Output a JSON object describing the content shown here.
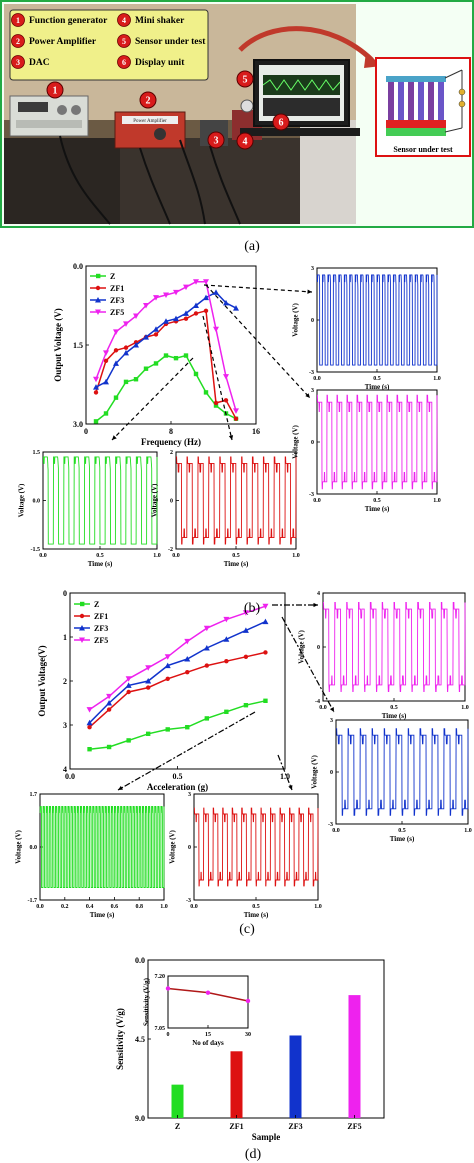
{
  "panel_a": {
    "legend_items": [
      {
        "num": "1",
        "label": "Function generator"
      },
      {
        "num": "2",
        "label": "Power Amplifier"
      },
      {
        "num": "3",
        "label": "DAC"
      },
      {
        "num": "4",
        "label": "Mini shaker"
      },
      {
        "num": "5",
        "label": "Sensor under test"
      },
      {
        "num": "6",
        "label": "Display unit"
      }
    ],
    "photo_markers": [
      "1",
      "2",
      "3",
      "4",
      "5",
      "6"
    ],
    "inset_caption": "Sensor under test",
    "device_label": "Power Amplifier"
  },
  "captions": {
    "a": "(a)",
    "b": "(b)",
    "c": "(c)",
    "d": "(d)"
  },
  "colors": {
    "Z": "#22dd22",
    "ZF1": "#dd1111",
    "ZF3": "#1133cc",
    "ZF5": "#ee22ee"
  },
  "chart_data": [
    {
      "id": "b-main",
      "type": "line",
      "xlabel": "Frequency (Hz)",
      "ylabel": "Output Voltage (V)",
      "xlim": [
        0,
        17
      ],
      "ylim": [
        0,
        3.0
      ],
      "xticks": [
        "0",
        "8",
        "16"
      ],
      "yticks": [
        "0.0",
        "1.5",
        "3.0"
      ],
      "legend": "top-left",
      "series": [
        {
          "name": "Z",
          "points": [
            [
              1,
              0.05
            ],
            [
              2,
              0.2
            ],
            [
              3,
              0.5
            ],
            [
              4,
              0.8
            ],
            [
              5,
              0.85
            ],
            [
              6,
              1.05
            ],
            [
              7,
              1.15
            ],
            [
              8,
              1.3
            ],
            [
              9,
              1.25
            ],
            [
              10,
              1.3
            ],
            [
              11,
              0.95
            ],
            [
              12,
              0.6
            ],
            [
              13,
              0.35
            ],
            [
              14,
              0.2
            ],
            [
              15,
              0.1
            ]
          ]
        },
        {
          "name": "ZF1",
          "points": [
            [
              1,
              0.6
            ],
            [
              2,
              1.2
            ],
            [
              3,
              1.4
            ],
            [
              4,
              1.45
            ],
            [
              5,
              1.55
            ],
            [
              6,
              1.65
            ],
            [
              7,
              1.7
            ],
            [
              8,
              1.9
            ],
            [
              9,
              1.95
            ],
            [
              10,
              2.0
            ],
            [
              11,
              2.1
            ],
            [
              12,
              2.15
            ],
            [
              13,
              0.4
            ],
            [
              14,
              0.45
            ],
            [
              15,
              0.1
            ]
          ]
        },
        {
          "name": "ZF3",
          "points": [
            [
              1,
              0.7
            ],
            [
              2,
              0.8
            ],
            [
              3,
              1.15
            ],
            [
              4,
              1.35
            ],
            [
              5,
              1.5
            ],
            [
              6,
              1.65
            ],
            [
              7,
              1.8
            ],
            [
              8,
              1.95
            ],
            [
              9,
              2.0
            ],
            [
              10,
              2.1
            ],
            [
              11,
              2.25
            ],
            [
              12,
              2.4
            ],
            [
              13,
              2.5
            ],
            [
              14,
              2.3
            ],
            [
              15,
              2.2
            ]
          ]
        },
        {
          "name": "ZF5",
          "points": [
            [
              1,
              0.85
            ],
            [
              2,
              1.35
            ],
            [
              3,
              1.75
            ],
            [
              4,
              1.9
            ],
            [
              5,
              2.05
            ],
            [
              6,
              2.25
            ],
            [
              7,
              2.4
            ],
            [
              8,
              2.45
            ],
            [
              9,
              2.5
            ],
            [
              10,
              2.6
            ],
            [
              11,
              2.7
            ],
            [
              12,
              2.7
            ],
            [
              13,
              1.8
            ],
            [
              14,
              0.9
            ],
            [
              15,
              0.25
            ]
          ]
        }
      ]
    },
    {
      "id": "b-green",
      "type": "line",
      "xlabel": "Time (s)",
      "ylabel": "Voltage (V)",
      "xlim": [
        0,
        1
      ],
      "ylim": [
        -1.5,
        1.5
      ],
      "xticks": [
        "0.0",
        "0.5",
        "1.0"
      ],
      "yticks": [
        "1.5",
        "0.0",
        "-1.5"
      ],
      "series": [
        {
          "name": "Z",
          "cycles": 11,
          "amplitude": 1.35
        }
      ]
    },
    {
      "id": "b-red",
      "type": "line",
      "xlabel": "Time (s)",
      "ylabel": "Voltage (V)",
      "xlim": [
        0,
        1
      ],
      "ylim": [
        -2,
        2
      ],
      "xticks": [
        "0.0",
        "0.5",
        "1.0"
      ],
      "yticks": [
        "2",
        "0",
        "-2"
      ],
      "series": [
        {
          "name": "ZF1",
          "cycles": 11,
          "amplitude": 1.8
        }
      ]
    },
    {
      "id": "b-blue",
      "type": "line",
      "xlabel": "Time (s)",
      "ylabel": "Voltage (V)",
      "xlim": [
        0,
        1
      ],
      "ylim": [
        -3,
        3
      ],
      "xticks": [
        "0.0",
        "0.5",
        "1.0"
      ],
      "yticks": [
        "3",
        "0",
        "-3"
      ],
      "series": [
        {
          "name": "ZF3",
          "cycles": 22,
          "amplitude": 2.6
        }
      ]
    },
    {
      "id": "b-magenta",
      "type": "line",
      "xlabel": "Time (s)",
      "ylabel": "Voltage (V)",
      "xlim": [
        0,
        1
      ],
      "ylim": [
        -3,
        3
      ],
      "xticks": [
        "0.0",
        "0.5",
        "1.0"
      ],
      "yticks": [
        "3",
        "0",
        "-3"
      ],
      "series": [
        {
          "name": "ZF5",
          "cycles": 12,
          "amplitude": 2.7
        }
      ]
    },
    {
      "id": "c-main",
      "type": "line",
      "xlabel": "Acceleration (g)",
      "ylabel": "Output Voltage(V)",
      "xlim": [
        0,
        1.1
      ],
      "ylim": [
        0,
        4
      ],
      "xticks": [
        "0.0",
        "0.5",
        "1.0"
      ],
      "yticks": [
        "0",
        "1",
        "2",
        "3",
        "4"
      ],
      "legend": "top-left",
      "series": [
        {
          "name": "Z",
          "points": [
            [
              0.1,
              0.45
            ],
            [
              0.2,
              0.5
            ],
            [
              0.3,
              0.65
            ],
            [
              0.4,
              0.8
            ],
            [
              0.5,
              0.9
            ],
            [
              0.6,
              0.95
            ],
            [
              0.7,
              1.15
            ],
            [
              0.8,
              1.3
            ],
            [
              0.9,
              1.45
            ],
            [
              1.0,
              1.55
            ]
          ]
        },
        {
          "name": "ZF1",
          "points": [
            [
              0.1,
              0.95
            ],
            [
              0.2,
              1.35
            ],
            [
              0.3,
              1.75
            ],
            [
              0.4,
              1.85
            ],
            [
              0.5,
              2.05
            ],
            [
              0.6,
              2.2
            ],
            [
              0.7,
              2.35
            ],
            [
              0.8,
              2.45
            ],
            [
              0.9,
              2.55
            ],
            [
              1.0,
              2.65
            ]
          ]
        },
        {
          "name": "ZF3",
          "points": [
            [
              0.1,
              1.05
            ],
            [
              0.2,
              1.5
            ],
            [
              0.3,
              1.9
            ],
            [
              0.4,
              2.0
            ],
            [
              0.5,
              2.35
            ],
            [
              0.6,
              2.5
            ],
            [
              0.7,
              2.75
            ],
            [
              0.8,
              2.95
            ],
            [
              0.9,
              3.15
            ],
            [
              1.0,
              3.35
            ]
          ]
        },
        {
          "name": "ZF5",
          "points": [
            [
              0.1,
              1.35
            ],
            [
              0.2,
              1.65
            ],
            [
              0.3,
              2.05
            ],
            [
              0.4,
              2.3
            ],
            [
              0.5,
              2.55
            ],
            [
              0.6,
              2.9
            ],
            [
              0.7,
              3.2
            ],
            [
              0.8,
              3.4
            ],
            [
              0.9,
              3.55
            ],
            [
              1.0,
              3.7
            ]
          ]
        }
      ]
    },
    {
      "id": "c-green",
      "type": "line",
      "xlabel": "Time (s)",
      "ylabel": "Voltage (V)",
      "xlim": [
        0,
        1
      ],
      "ylim": [
        -1.7,
        1.7
      ],
      "xticks": [
        "0.0",
        "0.2",
        "0.4",
        "0.6",
        "0.8",
        "1.0"
      ],
      "yticks": [
        "1.7",
        "0.0",
        "-1.7"
      ],
      "series": [
        {
          "name": "Z",
          "cycles": 40,
          "amplitude": 1.3
        }
      ]
    },
    {
      "id": "c-red",
      "type": "line",
      "xlabel": "Time (s)",
      "ylabel": "Voltage (V)",
      "xlim": [
        0,
        1
      ],
      "ylim": [
        -3,
        3
      ],
      "xticks": [
        "0.0",
        "0.5",
        "1.0"
      ],
      "yticks": [
        "3",
        "0",
        "-3"
      ],
      "series": [
        {
          "name": "ZF1",
          "cycles": 13,
          "amplitude": 2.2
        }
      ]
    },
    {
      "id": "c-magenta",
      "type": "line",
      "xlabel": "Time (s)",
      "ylabel": "Voltage (V)",
      "xlim": [
        0,
        1
      ],
      "ylim": [
        -4,
        4
      ],
      "xticks": [
        "0.0",
        "0.5",
        "1.0"
      ],
      "yticks": [
        "4",
        "0",
        "-4"
      ],
      "series": [
        {
          "name": "ZF5",
          "cycles": 12,
          "amplitude": 3.3
        }
      ]
    },
    {
      "id": "c-blue",
      "type": "line",
      "xlabel": "Time (s)",
      "ylabel": "Voltage (V)",
      "xlim": [
        0,
        1
      ],
      "ylim": [
        -3,
        3
      ],
      "xticks": [
        "0.0",
        "0.5",
        "1.0"
      ],
      "yticks": [
        "3",
        "0",
        "-3"
      ],
      "series": [
        {
          "name": "ZF3",
          "cycles": 11,
          "amplitude": 2.5
        }
      ]
    },
    {
      "id": "d-main",
      "type": "bar",
      "xlabel": "Sample",
      "ylabel": "Sensitivity (V/g)",
      "categories": [
        "Z",
        "ZF1",
        "ZF3",
        "ZF5"
      ],
      "values": [
        1.9,
        3.8,
        4.7,
        7.0
      ],
      "ylim": [
        0,
        9.0
      ],
      "yticks": [
        "0.0",
        "4.5",
        "9.0"
      ]
    },
    {
      "id": "d-inset",
      "type": "line",
      "xlabel": "No of days",
      "ylabel": "Sensitivity (V/g)",
      "xlim": [
        0,
        30
      ],
      "ylim": [
        7.05,
        7.3
      ],
      "xticks": [
        "0",
        "15",
        "30"
      ],
      "yticks": [
        "7.20",
        "7.05"
      ],
      "series": [
        {
          "name": "ZF5",
          "points": [
            [
              0,
              7.24
            ],
            [
              15,
              7.22
            ],
            [
              30,
              7.18
            ]
          ]
        }
      ]
    }
  ]
}
